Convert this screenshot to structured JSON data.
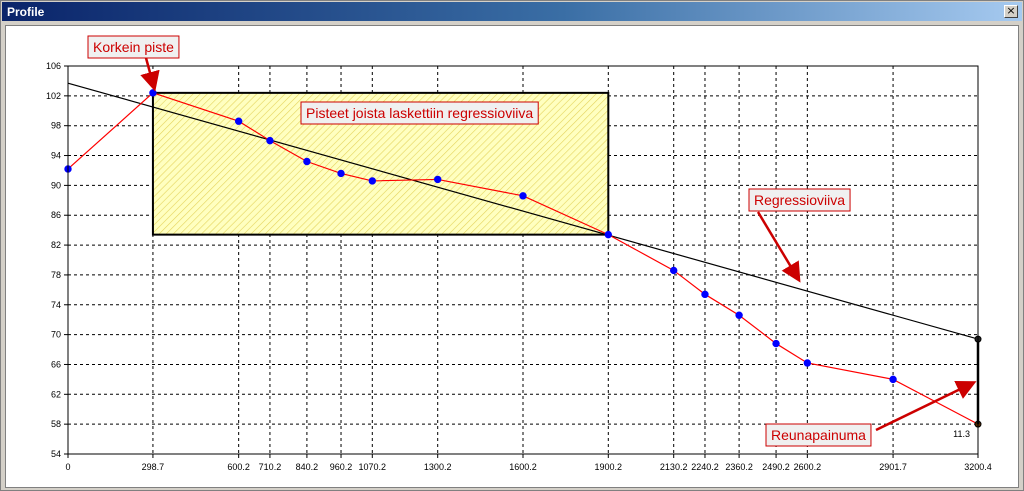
{
  "window": {
    "title": "Profile",
    "close_glyph": "×"
  },
  "chart_data": {
    "type": "line",
    "title": "",
    "xlabel": "",
    "ylabel": "",
    "ylim": [
      54,
      106
    ],
    "y_ticks": [
      54,
      58,
      62,
      66,
      70,
      74,
      78,
      82,
      86,
      90,
      94,
      98,
      102,
      106
    ],
    "xlim": [
      0,
      3200.4
    ],
    "x_tick_labels": [
      "0",
      "298.7",
      "600.2",
      "710.2",
      "840.2",
      "960.2",
      "1070.2",
      "1300.2",
      "1600.2",
      "1900.2",
      "2130.2",
      "2240.2",
      "2360.2",
      "2490.2",
      "2600.2",
      "2901.7",
      "3200.4"
    ],
    "x_tick_values": [
      0,
      298.7,
      600.2,
      710.2,
      840.2,
      960.2,
      1070.2,
      1300.2,
      1600.2,
      1900.2,
      2130.2,
      2240.2,
      2360.2,
      2490.2,
      2600.2,
      2901.7,
      3200.4
    ],
    "grid": true,
    "series": [
      {
        "name": "",
        "color": "#ff0000",
        "marker_color": "#0000ff",
        "x": [
          0,
          298.7,
          600.2,
          710.2,
          840.2,
          960.2,
          1070.2,
          1300.2,
          1600.2,
          1900.2,
          2130.2,
          2240.2,
          2360.2,
          2490.2,
          2600.2,
          2901.7,
          3200.4
        ],
        "y": [
          92.2,
          102.4,
          98.6,
          96.0,
          93.2,
          91.6,
          90.6,
          90.8,
          88.6,
          83.4,
          78.6,
          75.4,
          72.6,
          68.8,
          66.2,
          64.0,
          58.0
        ]
      },
      {
        "name": "Regressioviiva",
        "color": "#000000",
        "x": [
          0,
          3200.4
        ],
        "y": [
          103.7,
          69.4
        ]
      }
    ],
    "regression_region": {
      "x_start": 298.7,
      "x_end": 1900.2,
      "y_low": 83.4,
      "y_high": 102.4,
      "fill": "#ffffc0",
      "hatch": "#e8d860"
    },
    "edge_depression": {
      "x": 3200.4,
      "y_top": 69.4,
      "y_bottom": 58.0,
      "value_label": "11.3"
    },
    "annotations": [
      {
        "text": "Korkein piste",
        "target_x": 298.7,
        "target_y": 102.4
      },
      {
        "text": "Pisteet joista laskettiin regressioviiva"
      },
      {
        "text": "Regressioviiva",
        "target_x": 2560,
        "target_y": 77.0
      },
      {
        "text": "Reunapainuma",
        "target_x": 3200.4,
        "target_y": 64.0
      }
    ]
  }
}
